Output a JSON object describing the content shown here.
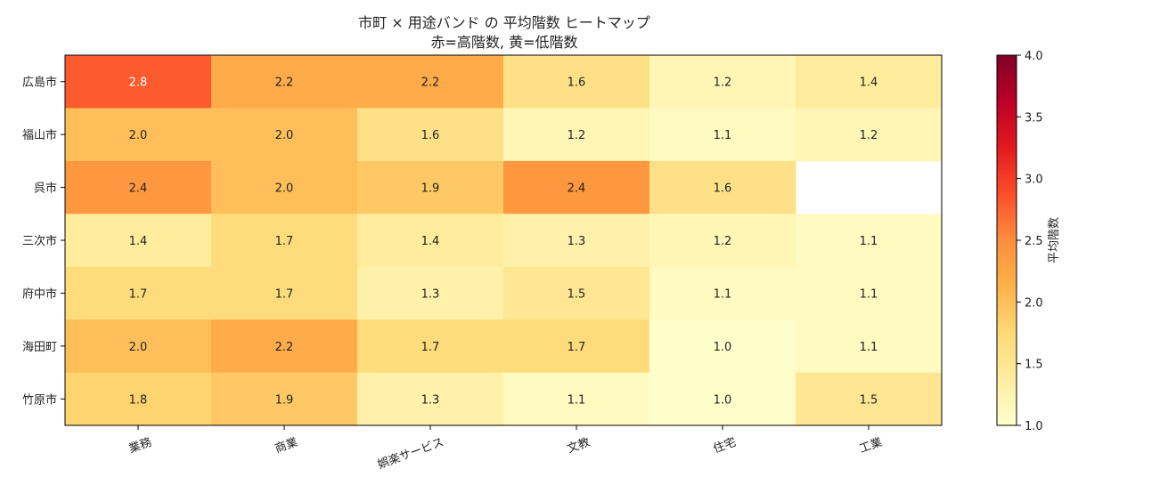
{
  "chart_data": {
    "type": "heatmap",
    "title": "市町 × 用途バンド の 平均階数 ヒートマップ",
    "subtitle": "赤=高階数, 黄=低階数",
    "x_categories": [
      "業務",
      "商業",
      "娯楽サービス",
      "文教",
      "住宅",
      "工業"
    ],
    "y_categories": [
      "広島市",
      "福山市",
      "呉市",
      "三次市",
      "府中市",
      "海田町",
      "竹原市"
    ],
    "values": [
      [
        2.8,
        2.2,
        2.2,
        1.6,
        1.2,
        1.4
      ],
      [
        2.0,
        2.0,
        1.6,
        1.2,
        1.1,
        1.2
      ],
      [
        2.4,
        2.0,
        1.9,
        2.4,
        1.6,
        null
      ],
      [
        1.4,
        1.7,
        1.4,
        1.3,
        1.2,
        1.1
      ],
      [
        1.7,
        1.7,
        1.3,
        1.5,
        1.1,
        1.1
      ],
      [
        2.0,
        2.2,
        1.7,
        1.7,
        1.0,
        1.1
      ],
      [
        1.8,
        1.9,
        1.3,
        1.1,
        1.0,
        1.5
      ]
    ],
    "colorbar": {
      "label": "平均階数",
      "range": [
        1.0,
        4.0
      ],
      "ticks": [
        "1.0",
        "1.5",
        "2.0",
        "2.5",
        "3.0",
        "3.5",
        "4.0"
      ],
      "colormap": "YlOrRd"
    },
    "grid": false
  }
}
